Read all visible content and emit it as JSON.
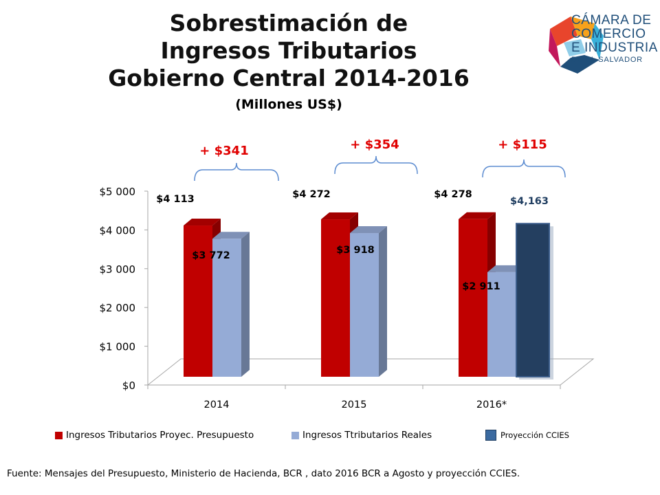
{
  "title_lines": [
    "Sobrestimación de",
    "Ingresos Tributarios",
    "Gobierno Central 2014-2016"
  ],
  "subtitle": "(Millones US$)",
  "logo": {
    "lines": [
      "CÁMARA DE",
      "COMERCIO",
      "E INDUSTRIA",
      "DE EL SALVADOR"
    ],
    "colors": [
      "#e8452c",
      "#f7a21b",
      "#3ab0d9",
      "#1f4e79",
      "#8fcde8"
    ]
  },
  "source": "Fuente: Mensajes del Presupuesto,  Ministerio de Hacienda, BCR , dato 2016 BCR a Agosto y proyección CCIES.",
  "chart_data": {
    "type": "bar",
    "categories": [
      "2014",
      "2015",
      "2016*"
    ],
    "ylim": [
      0,
      5000
    ],
    "y_ticks": [
      0,
      1000,
      2000,
      3000,
      4000,
      5000
    ],
    "y_tick_labels": [
      "$0",
      "$1 000",
      "$2 000",
      "$3 000",
      "$4 000",
      "$5 000"
    ],
    "grid": false,
    "legend_position": "bottom",
    "series": [
      {
        "name": "Ingresos Tributarios Proyec. Presupuesto",
        "color": "#c00000",
        "values": [
          4113,
          4272,
          4278
        ],
        "labels": [
          "$4 113",
          "$4 272",
          "$4 278"
        ]
      },
      {
        "name": "Ingresos Ttributarios Reales",
        "color": "#95abd6",
        "values": [
          3772,
          3918,
          2911
        ],
        "labels": [
          "$3 772",
          "$3 918",
          "$2 911"
        ]
      },
      {
        "name": "Proyección CCIES",
        "color": "#243f60",
        "values": [
          null,
          null,
          4163
        ],
        "labels": [
          null,
          null,
          "$4,163"
        ]
      }
    ],
    "annotations": [
      {
        "category": "2014",
        "text": "+ $341"
      },
      {
        "category": "2015",
        "text": "+ $354"
      },
      {
        "category": "2016*",
        "text": "+ $115"
      }
    ]
  }
}
